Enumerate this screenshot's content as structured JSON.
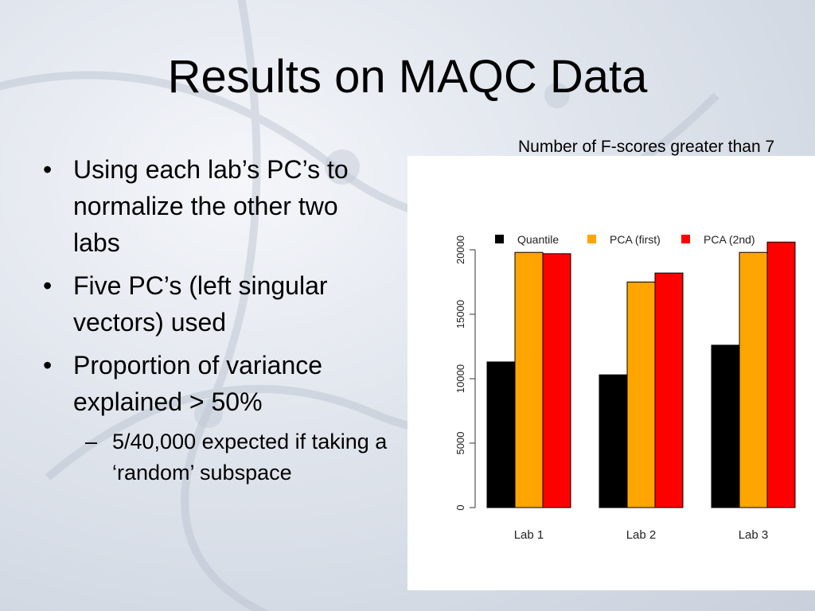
{
  "slide": {
    "title": "Results on MAQC Data",
    "bullets": [
      "Using each lab’s PC’s to normalize the other two labs",
      "Five PC’s (left singular vectors) used",
      "Proportion of variance explained > 50%"
    ],
    "sub_bullets": [
      "5/40,000 expected if taking a ‘random’ subspace"
    ],
    "bullet_symbol": "•",
    "sub_bullet_symbol": "–",
    "chart_note": "Number of F-scores greater than 7"
  },
  "chart_data": {
    "type": "bar",
    "categories": [
      "Lab 1",
      "Lab 2",
      "Lab 3"
    ],
    "series": [
      {
        "name": "Quantile",
        "color": "#000000",
        "values": [
          11300,
          10300,
          12600
        ]
      },
      {
        "name": "PCA (first)",
        "color": "#FFA500",
        "values": [
          19800,
          17500,
          19800
        ]
      },
      {
        "name": "PCA (2nd)",
        "color": "#FF0000",
        "values": [
          19700,
          18200,
          20600
        ]
      }
    ],
    "yticks": [
      "0",
      "5000",
      "10000",
      "15000",
      "20000"
    ],
    "ylim": [
      0,
      20000
    ],
    "title": "",
    "xlabel": "",
    "ylabel": "",
    "legend": "top"
  }
}
